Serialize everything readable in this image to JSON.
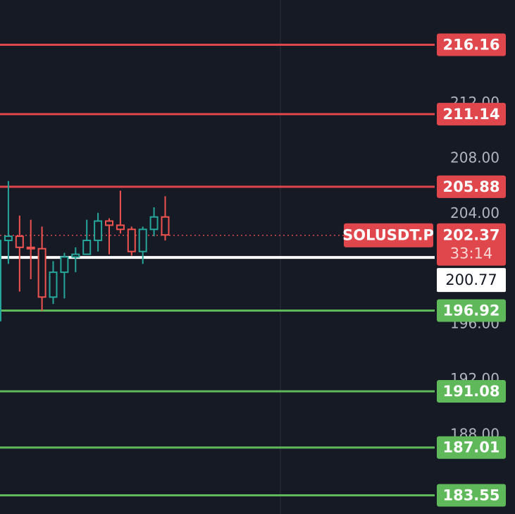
{
  "colors": {
    "background": "#161a25",
    "grid": "#242733",
    "resistance": "#e0474c",
    "support": "#5fb85a",
    "candle_up": "#26a69a",
    "candle_down": "#ef5350",
    "current_marker": "#ffffff",
    "axis_text": "#b2b5be"
  },
  "chart_data": {
    "type": "candlestick",
    "symbol_label": "SOLUSDT.P",
    "last_price": 202.37,
    "countdown": "33:14",
    "marker_price": 200.77,
    "y_range": [
      182.2,
      219.4
    ],
    "y_ticks": [
      {
        "value": 212.0,
        "label": "212.00"
      },
      {
        "value": 208.0,
        "label": "208.00"
      },
      {
        "value": 204.0,
        "label": "204.00"
      },
      {
        "value": 196.0,
        "label": "196.00"
      },
      {
        "value": 192.0,
        "label": "192.00"
      },
      {
        "value": 188.0,
        "label": "188.00"
      }
    ],
    "resistance_levels": [
      {
        "value": 216.16,
        "label": "216.16"
      },
      {
        "value": 211.14,
        "label": "211.14"
      },
      {
        "value": 205.88,
        "label": "205.88"
      }
    ],
    "support_levels": [
      {
        "value": 196.92,
        "label": "196.92"
      },
      {
        "value": 191.08,
        "label": "191.08"
      },
      {
        "value": 187.01,
        "label": "187.01"
      },
      {
        "value": 183.55,
        "label": "183.55"
      }
    ],
    "candles": [
      {
        "open": 196.2,
        "high": 202.5,
        "low": 196.0,
        "close": 202.0
      },
      {
        "open": 202.0,
        "high": 206.3,
        "low": 200.3,
        "close": 202.3
      },
      {
        "open": 202.3,
        "high": 203.8,
        "low": 198.3,
        "close": 201.5
      },
      {
        "open": 201.5,
        "high": 203.5,
        "low": 199.2,
        "close": 201.4
      },
      {
        "open": 201.4,
        "high": 203.0,
        "low": 196.9,
        "close": 197.9
      },
      {
        "open": 197.9,
        "high": 200.5,
        "low": 197.4,
        "close": 199.7
      },
      {
        "open": 199.7,
        "high": 201.1,
        "low": 197.8,
        "close": 200.8
      },
      {
        "open": 200.8,
        "high": 201.5,
        "low": 199.7,
        "close": 201.0
      },
      {
        "open": 201.0,
        "high": 203.5,
        "low": 201.0,
        "close": 202.0
      },
      {
        "open": 202.0,
        "high": 204.0,
        "low": 201.2,
        "close": 203.4
      },
      {
        "open": 203.4,
        "high": 203.6,
        "low": 201.0,
        "close": 203.1
      },
      {
        "open": 203.1,
        "high": 205.6,
        "low": 202.5,
        "close": 202.8
      },
      {
        "open": 202.8,
        "high": 203.0,
        "low": 200.9,
        "close": 201.2
      },
      {
        "open": 201.2,
        "high": 203.0,
        "low": 200.3,
        "close": 202.8
      },
      {
        "open": 202.8,
        "high": 204.4,
        "low": 202.3,
        "close": 203.7
      },
      {
        "open": 203.7,
        "high": 205.2,
        "low": 202.0,
        "close": 202.4
      }
    ]
  }
}
